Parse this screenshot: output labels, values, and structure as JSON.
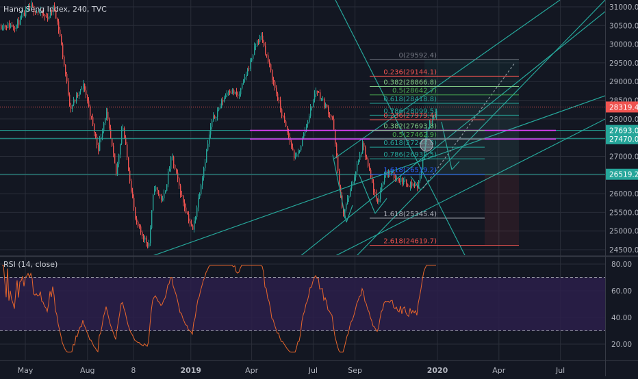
{
  "header": {
    "title": "Hang Seng Index, 240, TVC"
  },
  "colors": {
    "background": "#131722",
    "grid": "#2a2e39",
    "axis_text": "#b2b5be",
    "candle_up": "#26a69a",
    "candle_down": "#ef5350",
    "trend": "#26a69a",
    "magenta": "#e040fb",
    "rsi": "#e8662c",
    "rsi_band": "#2b1f4a"
  },
  "chart_data": [
    {
      "type": "candlestick",
      "title": "Hang Seng Index, 240, TVC",
      "x_tick_labels": [
        "May",
        "Aug",
        "8",
        "2019",
        "Apr",
        "Jul",
        "Sep",
        "2020",
        "Apr",
        "Jul"
      ],
      "y_tick_labels": [
        "31000.0",
        "30500.0",
        "30000.0",
        "29500.0",
        "29000.0",
        "28500.0",
        "28000.0",
        "27500.0",
        "27000.0",
        "26500.0",
        "26000.0",
        "25500.0",
        "25000.0",
        "24500.0"
      ],
      "ylim": [
        24300,
        31100
      ],
      "grid": true,
      "price_path": [
        [
          "2018-04-16",
          30500
        ],
        [
          "2018-05-08",
          31000
        ],
        [
          "2018-06-01",
          30700
        ],
        [
          "2018-06-12",
          31000
        ],
        [
          "2018-06-20",
          30300
        ],
        [
          "2018-07-06",
          28300
        ],
        [
          "2018-07-26",
          28900
        ],
        [
          "2018-08-16",
          27200
        ],
        [
          "2018-08-28",
          28200
        ],
        [
          "2018-09-12",
          26500
        ],
        [
          "2018-09-21",
          27900
        ],
        [
          "2018-10-11",
          25200
        ],
        [
          "2018-10-30",
          24600
        ],
        [
          "2018-11-07",
          26200
        ],
        [
          "2018-11-20",
          25800
        ],
        [
          "2018-12-03",
          27000
        ],
        [
          "2018-12-18",
          25900
        ],
        [
          "2019-01-03",
          25000
        ],
        [
          "2019-01-31",
          27900
        ],
        [
          "2019-02-25",
          28800
        ],
        [
          "2019-03-12",
          28600
        ],
        [
          "2019-04-09",
          30100
        ],
        [
          "2019-04-15",
          30200
        ],
        [
          "2019-05-14",
          28200
        ],
        [
          "2019-06-04",
          26900
        ],
        [
          "2019-06-12",
          27300
        ],
        [
          "2019-07-02",
          28600
        ],
        [
          "2019-07-05",
          28800
        ],
        [
          "2019-07-29",
          28000
        ],
        [
          "2019-08-13",
          25400
        ],
        [
          "2019-08-23",
          26000
        ],
        [
          "2019-09-12",
          27300
        ],
        [
          "2019-10-03",
          25700
        ],
        [
          "2019-10-15",
          26600
        ],
        [
          "2019-11-13",
          26300
        ],
        [
          "2019-12-03",
          26200
        ],
        [
          "2019-12-17",
          27800
        ],
        [
          "2020-01-02",
          28319
        ]
      ],
      "horizontal_levels": [
        {
          "price": 27693.0,
          "label": "27693.0",
          "color": "#26a69a"
        },
        {
          "price": 27470.0,
          "label": "27470.0",
          "color": "#26a69a"
        },
        {
          "price": 26519.2,
          "label": "26519.2",
          "color": "#26a69a"
        },
        {
          "price": 28319.4,
          "label": "28319.4",
          "color": "#ef5350",
          "dotted": true
        }
      ],
      "fib_levels": [
        {
          "label": "0(29592.4)",
          "price": 29592.4,
          "color": "#787b86"
        },
        {
          "label": "0.236(29144.1)",
          "price": 29144.1,
          "color": "#ef5350"
        },
        {
          "label": "0.382(28866.8)",
          "price": 28866.8,
          "color": "#81c784"
        },
        {
          "label": "0.5(28642.7)",
          "price": 28642.7,
          "color": "#4caf50"
        },
        {
          "label": "0.618(28418.8)",
          "price": 28418.8,
          "color": "#26a69a"
        },
        {
          "label": "0.786(28099.5)",
          "price": 28099.5,
          "color": "#26a69a"
        },
        {
          "label": "0.236(27979.4)",
          "price": 27979.4,
          "color": "#ef5350"
        },
        {
          "label": "0.382(27693.8)",
          "price": 27693.8,
          "color": "#81c784"
        },
        {
          "label": "0.5(27462.9)",
          "price": 27462.9,
          "color": "#4caf50"
        },
        {
          "label": "0.618(27244.8)",
          "price": 27244.8,
          "color": "#26a69a"
        },
        {
          "label": "0.786(26932.5)",
          "price": 26932.5,
          "color": "#26a69a"
        },
        {
          "label": "1.618(26519.2)",
          "price": 26519.2,
          "color": "#2962ff"
        },
        {
          "label": "1.618(25345.4)",
          "price": 25345.4,
          "color": "#b2b5be"
        },
        {
          "label": "2.618(24619.7)",
          "price": 24619.7,
          "color": "#ef5350"
        }
      ]
    },
    {
      "type": "line",
      "title": "RSI (14, close)",
      "y_tick_labels": [
        "80.00",
        "60.00",
        "40.00",
        "20.00"
      ],
      "ylim": [
        12,
        84
      ],
      "bands": [
        30,
        70
      ],
      "grid": true
    }
  ]
}
